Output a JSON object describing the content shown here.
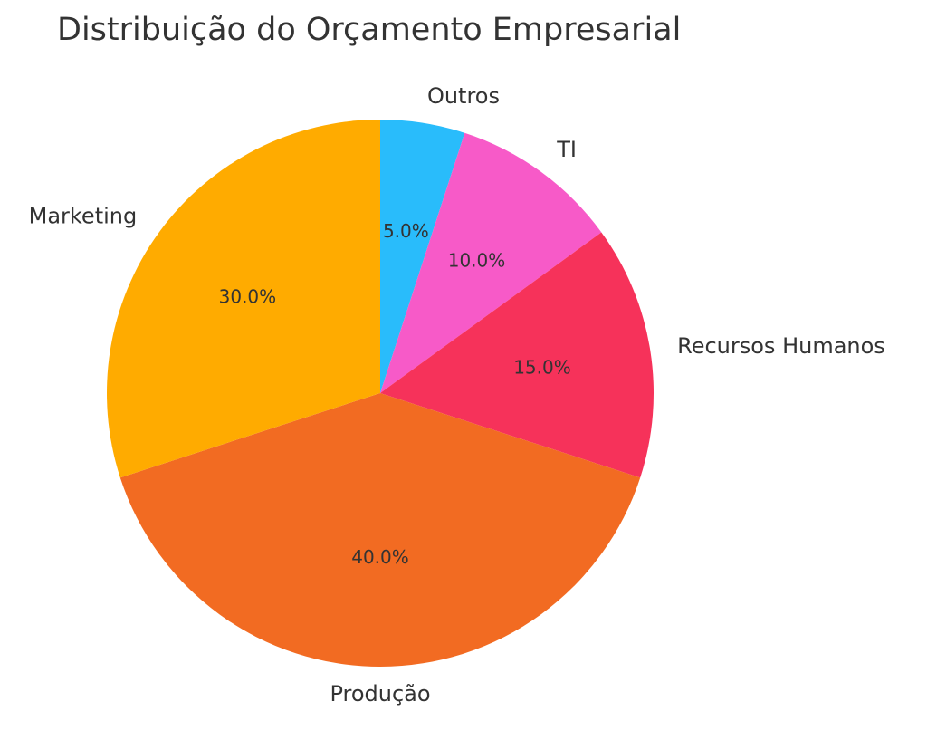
{
  "chart_data": {
    "type": "pie",
    "title": "Distribuição do Orçamento Empresarial",
    "categories": [
      "Outros",
      "TI",
      "Recursos Humanos",
      "Produção",
      "Marketing"
    ],
    "values": [
      5.0,
      10.0,
      15.0,
      40.0,
      30.0
    ],
    "percent_labels": [
      "5.0%",
      "10.0%",
      "15.0%",
      "40.0%",
      "30.0%"
    ],
    "colors": [
      "#29BCFB",
      "#F75AC8",
      "#F6325A",
      "#F26B22",
      "#FFAB00"
    ],
    "start_angle_deg": 90,
    "direction": "clockwise"
  }
}
